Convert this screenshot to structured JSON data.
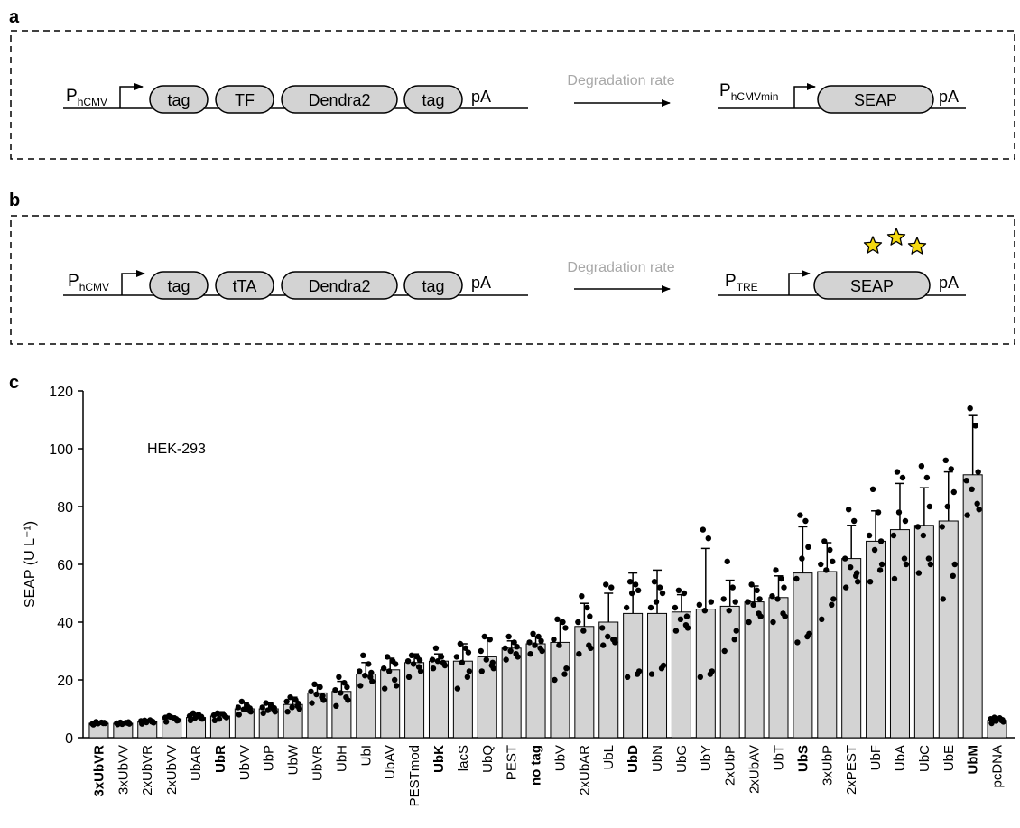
{
  "panels": {
    "a": {
      "letter": "a",
      "promoter": "P",
      "promoter_sub": "hCMV",
      "tag_left": "tag",
      "tf": "TF",
      "dendra": "Dendra2",
      "tag_right": "tag",
      "pa": "pA",
      "arrow_label": "Degradation rate",
      "promoter2": "P",
      "promoter2_sub": "hCMVmin",
      "reporter": "SEAP",
      "pa2": "pA"
    },
    "b": {
      "letter": "b",
      "promoter": "P",
      "promoter_sub": "hCMV",
      "tag_left": "tag",
      "tf": "tTA",
      "dendra": "Dendra2",
      "tag_right": "tag",
      "pa": "pA",
      "arrow_label": "Degradation rate",
      "promoter2": "P",
      "promoter2_sub": "TRE",
      "reporter": "SEAP",
      "pa2": "pA",
      "star_color": "#f5d90f"
    },
    "c": {
      "letter": "c"
    }
  },
  "chart_data": {
    "type": "bar",
    "annotation": "HEK-293",
    "ylabel": "SEAP (U L⁻¹)",
    "ylim": [
      0,
      120
    ],
    "yticks": [
      0,
      20,
      40,
      60,
      80,
      100,
      120
    ],
    "bar_color": "#d3d3d3",
    "point_color": "#000000",
    "categories": [
      "3xUbVR",
      "3xUbVV",
      "2xUbVR",
      "2xUbVV",
      "UbAR",
      "UbR",
      "UbVV",
      "UbP",
      "UbW",
      "UbVR",
      "UbH",
      "UbI",
      "UbAV",
      "PESTmod",
      "UbK",
      "lacS",
      "UbQ",
      "PEST",
      "no tag",
      "UbV",
      "2xUbAR",
      "UbL",
      "UbD",
      "UbN",
      "UbG",
      "UbY",
      "2xUbP",
      "2xUbAV",
      "UbT",
      "UbS",
      "3xUbP",
      "2xPEST",
      "UbF",
      "UbA",
      "UbC",
      "UbE",
      "UbM",
      "pcDNA"
    ],
    "bold_categories": [
      "3xUbVR",
      "UbR",
      "UbK",
      "no tag",
      "UbD",
      "UbS",
      "UbM"
    ],
    "values": [
      5,
      5,
      5.5,
      6.5,
      7,
      7.5,
      10,
      10,
      11.5,
      15.5,
      16,
      22,
      23.5,
      26,
      26.5,
      26.5,
      28,
      31,
      32.5,
      33,
      38.5,
      40,
      43,
      43,
      43.5,
      44.5,
      45.5,
      47,
      48.5,
      57,
      57.5,
      62,
      68,
      72,
      73.5,
      75,
      91,
      6
    ],
    "errors": [
      0.6,
      0.6,
      0.8,
      1,
      1.3,
      1.5,
      2,
      2,
      2.5,
      3,
      3.5,
      4,
      4,
      3,
      2.5,
      6,
      6.5,
      2.5,
      2.5,
      7.5,
      8,
      10,
      14,
      15,
      6,
      21,
      9,
      5.5,
      7.5,
      16,
      10,
      11.5,
      10.5,
      16,
      13,
      17,
      20.5,
      0.8
    ],
    "points": [
      [
        4.5,
        5,
        5.5,
        5,
        4.8,
        5.3,
        4.9,
        5.2
      ],
      [
        4.6,
        5.1,
        5.3,
        4.8,
        5,
        5.2,
        4.7,
        5.4
      ],
      [
        4.8,
        5.5,
        6,
        5.2,
        5.8,
        6.1,
        5.3,
        5.6
      ],
      [
        5.5,
        6.5,
        7.5,
        6,
        7,
        6.8,
        7.2,
        5.9
      ],
      [
        6,
        7,
        8.5,
        6.5,
        7.5,
        8,
        6.8,
        7.3
      ],
      [
        6,
        7.5,
        8.5,
        7,
        7.8,
        8.2,
        6.5,
        7.3
      ],
      [
        8,
        9.5,
        12.5,
        9,
        10.5,
        11,
        9.8,
        10.2
      ],
      [
        8.5,
        10,
        12,
        9,
        10.5,
        11,
        9.5,
        10.3
      ],
      [
        9,
        11,
        14,
        10,
        12.5,
        13,
        10.5,
        11.8
      ],
      [
        12,
        14,
        18.5,
        13,
        16,
        17.5,
        15,
        14.5
      ],
      [
        11,
        14,
        21,
        13,
        16.5,
        19,
        15.5,
        17.5
      ],
      [
        18,
        21,
        28.5,
        19.5,
        23,
        25.5,
        21.5,
        22.5
      ],
      [
        17,
        20,
        28,
        18,
        24,
        26.5,
        23,
        25.5
      ],
      [
        21,
        24.5,
        28.5,
        23,
        26.5,
        28,
        25.5,
        26.8
      ],
      [
        24,
        26,
        31,
        25,
        27,
        28,
        26.5,
        25.5
      ],
      [
        17,
        21,
        32.5,
        23,
        28,
        31,
        26,
        29.5
      ],
      [
        23,
        25,
        35,
        24,
        30,
        34,
        27,
        26
      ],
      [
        27,
        29,
        35,
        28,
        31,
        33,
        30,
        31.5
      ],
      [
        29,
        31,
        36,
        30,
        33,
        35,
        32,
        33.5
      ],
      [
        20,
        22,
        41,
        24,
        34,
        40,
        32,
        38
      ],
      [
        29,
        32,
        49,
        31,
        40,
        45,
        37,
        42
      ],
      [
        32,
        34,
        53,
        33,
        38,
        52,
        35,
        34
      ],
      [
        21,
        22,
        54,
        23,
        45,
        53,
        50,
        51
      ],
      [
        22,
        24,
        54,
        25,
        45,
        52,
        47,
        50
      ],
      [
        37,
        39,
        51,
        38,
        45,
        50,
        41,
        42
      ],
      [
        21,
        22,
        72,
        23,
        46,
        69,
        44,
        47
      ],
      [
        30,
        34,
        61,
        37,
        48,
        52,
        44,
        47
      ],
      [
        40,
        43,
        53,
        42,
        47,
        51,
        46,
        48
      ],
      [
        40,
        43,
        58,
        42,
        49,
        55,
        48,
        52
      ],
      [
        33,
        35,
        77,
        36,
        55,
        75,
        62,
        66
      ],
      [
        41,
        46,
        68,
        48,
        60,
        65,
        58,
        61
      ],
      [
        52,
        56,
        79,
        54,
        62,
        75,
        59,
        57
      ],
      [
        54,
        58,
        86,
        60,
        70,
        78,
        65,
        68
      ],
      [
        55,
        62,
        92,
        60,
        70,
        90,
        78,
        75
      ],
      [
        57,
        62,
        94,
        60,
        73,
        90,
        70,
        80
      ],
      [
        48,
        56,
        96,
        60,
        73,
        93,
        80,
        85
      ],
      [
        77,
        81,
        114,
        79,
        89,
        108,
        86,
        92
      ],
      [
        5,
        6,
        7,
        5.5,
        6.5,
        6.8,
        5.8,
        6.2
      ]
    ]
  }
}
